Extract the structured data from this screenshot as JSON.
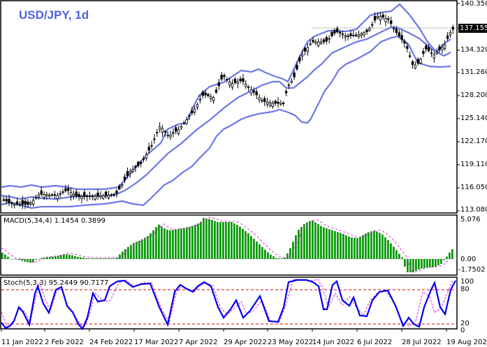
{
  "header": {
    "title": "USD/JPY, 1d"
  },
  "price_axis": {
    "labels": [
      "140.350",
      "137.155",
      "134.320",
      "131.260",
      "128.200",
      "125.140",
      "122.170",
      "119.110",
      "116.050",
      "113.080"
    ],
    "current_price": "137.155"
  },
  "macd": {
    "label": "MACD(5,34,4) 1.1454 0.3899",
    "axis_labels": [
      "5.076",
      "0.00",
      "-1.7502"
    ]
  },
  "stoch": {
    "label": "Stoch(5,3,3) 95.2449 90.7177",
    "axis_labels": [
      "100",
      "80",
      "20",
      "0"
    ]
  },
  "date_axis": {
    "labels": [
      "11 Jan 2022",
      "2 Feb 2022",
      "24 Feb 2022",
      "17 Mar 2022",
      "7 Apr 2022",
      "29 Apr 2022",
      "23 May 2022",
      "14 Jun 2022",
      "6 Jul 2022",
      "28 Jul 2022",
      "19 Aug 2022"
    ]
  },
  "colors": {
    "title": "#4f63e0",
    "bands": "#6b78e8",
    "macd_hist": "#0a9a0a",
    "signal": "#e020e0",
    "stoch_main": "#0000ee",
    "levels": "#dd0000",
    "current_line": "#c0c0c0"
  },
  "chart_data": [
    {
      "type": "candlestick",
      "title": "USD/JPY, 1d",
      "indicator": "Bollinger Bands",
      "ylim": [
        113.08,
        140.35
      ],
      "yticks": [
        140.35,
        137.155,
        134.32,
        131.26,
        128.2,
        125.14,
        122.17,
        119.11,
        116.05,
        113.08
      ],
      "x_ticks": [
        "11 Jan 2022",
        "2 Feb 2022",
        "24 Feb 2022",
        "17 Mar 2022",
        "7 Apr 2022",
        "29 Apr 2022",
        "23 May 2022",
        "14 Jun 2022",
        "6 Jul 2022",
        "28 Jul 2022",
        "19 Aug 2022"
      ],
      "approx_close_by_tick": [
        114.5,
        115.3,
        115.2,
        118.5,
        123.8,
        130.1,
        127.8,
        135.2,
        135.9,
        134.2,
        137.155
      ],
      "current_price": 137.155
    },
    {
      "type": "bar",
      "title": "MACD(5,34,4)",
      "values_label": [
        1.1454,
        0.3899
      ],
      "ylim": [
        -1.7502,
        5.076
      ],
      "series": [
        {
          "name": "MACD histogram"
        },
        {
          "name": "Signal",
          "style": "dotted"
        }
      ]
    },
    {
      "type": "line",
      "title": "Stoch(5,3,3)",
      "values_label": [
        95.2449,
        90.7177
      ],
      "ylim": [
        0,
        100
      ],
      "levels": [
        20,
        80
      ],
      "series": [
        {
          "name": "%K"
        },
        {
          "name": "%D",
          "style": "dotted"
        }
      ]
    }
  ]
}
